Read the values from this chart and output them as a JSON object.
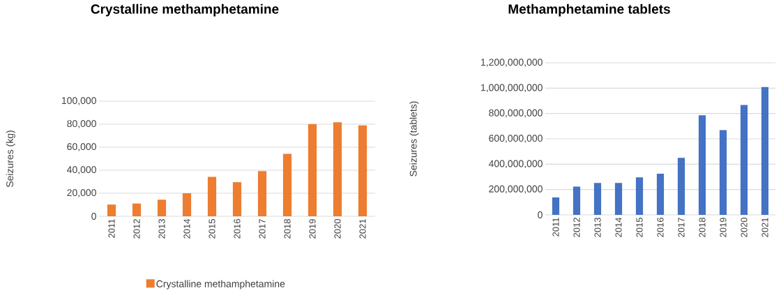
{
  "chart_data": [
    {
      "type": "bar",
      "title": "Crystalline methamphetamine",
      "ylabel": "Seizures (kg)",
      "categories": [
        "2011",
        "2012",
        "2013",
        "2014",
        "2015",
        "2016",
        "2017",
        "2018",
        "2019",
        "2020",
        "2021"
      ],
      "series": [
        {
          "name": "Crystalline methamphetamine",
          "color": "#ed7d31",
          "values": [
            10200,
            11000,
            14400,
            20000,
            34200,
            29600,
            39200,
            54200,
            80000,
            81600,
            79000
          ]
        }
      ],
      "ylim": [
        0,
        100000
      ],
      "yticks": [
        0,
        {
          "value": 20000,
          "label": "20,000"
        },
        {
          "value": 40000,
          "label": "40,000"
        },
        {
          "value": 60000,
          "label": "60,000"
        },
        {
          "value": 80000,
          "label": "80,000"
        },
        {
          "value": 100000,
          "label": "100,000"
        }
      ],
      "grid": "y",
      "legend": "bottom"
    },
    {
      "type": "bar",
      "title": "Methamphetamine tablets",
      "ylabel": "Seizures (tablets)",
      "categories": [
        "2011",
        "2012",
        "2013",
        "2014",
        "2015",
        "2016",
        "2017",
        "2018",
        "2019",
        "2020",
        "2021"
      ],
      "series": [
        {
          "color": "#4472c4",
          "values": [
            137000000,
            223000000,
            252000000,
            252000000,
            296000000,
            325000000,
            450000000,
            786000000,
            669000000,
            867000000,
            1010000000
          ]
        }
      ],
      "ylim": [
        0,
        1200000000
      ],
      "yticks": [
        0,
        {
          "value": 200000000,
          "label": "200,000,000"
        },
        {
          "value": 400000000,
          "label": "400,000,000"
        },
        {
          "value": 600000000,
          "label": "600,000,000"
        },
        {
          "value": 800000000,
          "label": "800,000,000"
        },
        {
          "value": 1000000000,
          "label": "1,000,000,000"
        },
        {
          "value": 1200000000,
          "label": "1,200,000,000"
        }
      ],
      "grid": "y",
      "legend": false
    }
  ]
}
